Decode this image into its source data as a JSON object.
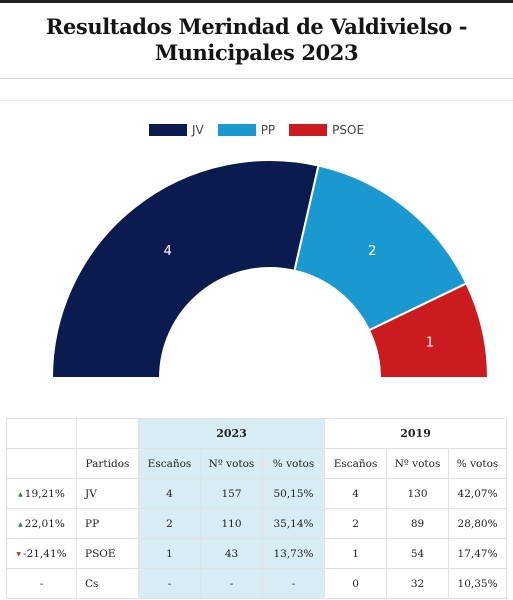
{
  "title": "Resultados Merindad de Valdivielso - Municipales 2023",
  "chart_data": {
    "type": "pie",
    "subtype": "parliament-hemicycle",
    "legend_position": "top",
    "series": [
      {
        "name": "JV",
        "value": 4,
        "color": "#0b1a4f"
      },
      {
        "name": "PP",
        "value": 2,
        "color": "#1a99d0"
      },
      {
        "name": "PSOE",
        "value": 1,
        "color": "#cc1b1f"
      }
    ]
  },
  "table": {
    "year_current": "2023",
    "year_previous": "2019",
    "headers": {
      "partidos": "Partidos",
      "escanos": "Escaños",
      "votos": "Nº votos",
      "pct": "% votos"
    },
    "rows": [
      {
        "diff": "19,21%",
        "trend": "up",
        "party": "JV",
        "seats_2023": "4",
        "votes_2023": "157",
        "pct_2023": "50,15%",
        "seats_2019": "4",
        "votes_2019": "130",
        "pct_2019": "42,07%"
      },
      {
        "diff": "22,01%",
        "trend": "up",
        "party": "PP",
        "seats_2023": "2",
        "votes_2023": "110",
        "pct_2023": "35,14%",
        "seats_2019": "2",
        "votes_2019": "89",
        "pct_2019": "28,80%"
      },
      {
        "diff": "-21,41%",
        "trend": "down",
        "party": "PSOE",
        "seats_2023": "1",
        "votes_2023": "43",
        "pct_2023": "13,73%",
        "seats_2019": "1",
        "votes_2019": "54",
        "pct_2019": "17,47%"
      },
      {
        "diff": "-",
        "trend": "none",
        "party": "Cs",
        "seats_2023": "-",
        "votes_2023": "-",
        "pct_2023": "-",
        "seats_2019": "0",
        "votes_2019": "32",
        "pct_2019": "10,35%"
      }
    ]
  }
}
